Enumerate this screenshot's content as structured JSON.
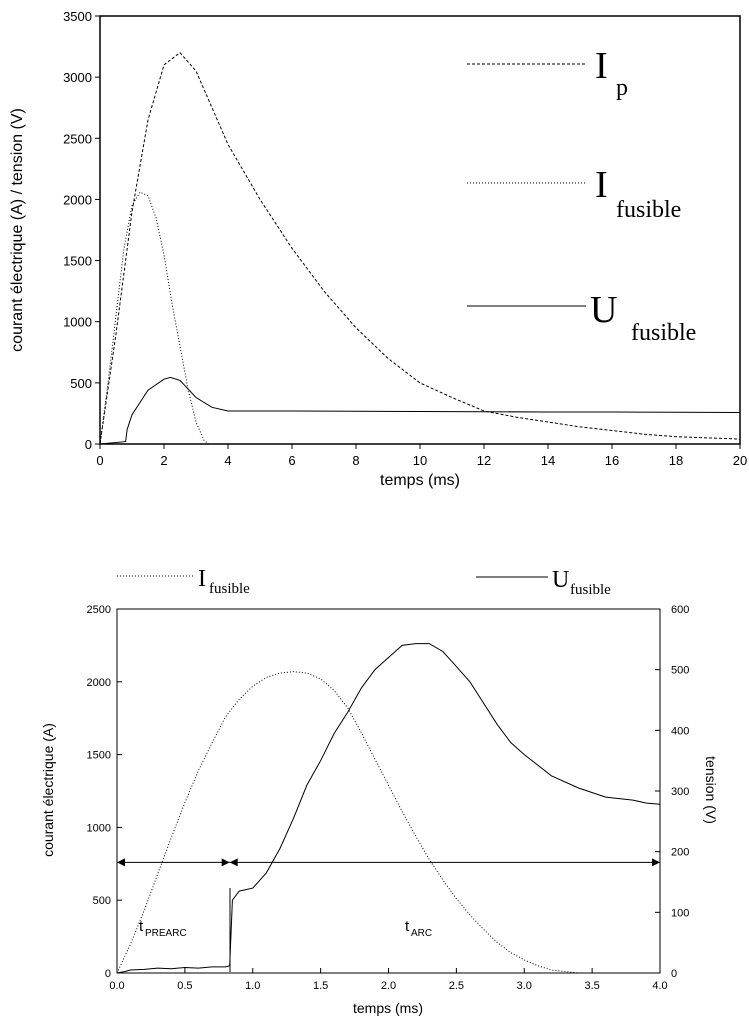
{
  "chart_data": [
    {
      "type": "line",
      "xlabel": "temps (ms)",
      "ylabel": "courant électrique (A) / tension (V)",
      "xlim": [
        0,
        20
      ],
      "ylim": [
        0,
        3500
      ],
      "xticks": [
        "0",
        "2",
        "4",
        "6",
        "8",
        "10",
        "12",
        "14",
        "16",
        "18",
        "20"
      ],
      "yticks": [
        "0",
        "500",
        "1000",
        "1500",
        "2000",
        "2500",
        "3000",
        "3500"
      ],
      "legend_position": "right",
      "series": [
        {
          "name": "I_p",
          "legend_main": "I",
          "legend_sub": "p",
          "style": "dashed",
          "x": [
            0,
            0.5,
            1.0,
            1.5,
            2.0,
            2.5,
            3.0,
            3.5,
            4.0,
            5.0,
            6.0,
            7.0,
            8.0,
            9.0,
            10.0,
            11.0,
            12.0,
            13.0,
            14.0,
            15.0,
            16.0,
            17.0,
            18.0,
            19.0,
            20.0
          ],
          "y": [
            0,
            900,
            1900,
            2650,
            3100,
            3200,
            3050,
            2750,
            2450,
            2000,
            1600,
            1250,
            950,
            700,
            500,
            380,
            270,
            220,
            180,
            140,
            110,
            80,
            60,
            50,
            40
          ]
        },
        {
          "name": "I_fusible",
          "legend_main": "I",
          "legend_sub": "fusible",
          "style": "dotted",
          "x": [
            0,
            0.25,
            0.5,
            0.75,
            1.0,
            1.25,
            1.5,
            1.75,
            2.0,
            2.25,
            2.5,
            2.75,
            3.0,
            3.25,
            3.4
          ],
          "y": [
            0,
            500,
            1050,
            1600,
            1950,
            2060,
            2030,
            1850,
            1550,
            1150,
            800,
            450,
            180,
            30,
            0
          ]
        },
        {
          "name": "U_fusible",
          "legend_main": "U",
          "legend_sub": "fusible",
          "style": "solid",
          "x": [
            0,
            0.8,
            0.85,
            1.0,
            1.5,
            2.0,
            2.2,
            2.5,
            3.0,
            3.5,
            4.0,
            6.0,
            8.0,
            10.0,
            12.0,
            14.0,
            16.0,
            18.0,
            20.0
          ],
          "y": [
            0,
            20,
            120,
            240,
            440,
            530,
            545,
            520,
            380,
            300,
            270,
            270,
            268,
            266,
            264,
            262,
            262,
            260,
            258
          ]
        }
      ]
    },
    {
      "type": "line",
      "xlabel": "temps (ms)",
      "ylabel": "courant électrique (A)",
      "y2label": "tension (V)",
      "xlim": [
        0,
        4
      ],
      "ylim": [
        0,
        2500
      ],
      "y2lim": [
        0,
        600
      ],
      "xticks": [
        "0.0",
        "0.5",
        "1.0",
        "1.5",
        "2.0",
        "2.5",
        "3.0",
        "3.5",
        "4.0"
      ],
      "yticks": [
        "0",
        "500",
        "1000",
        "1500",
        "2000",
        "2500"
      ],
      "y2ticks": [
        "0",
        "100",
        "200",
        "300",
        "400",
        "500",
        "600"
      ],
      "legend_position": "top",
      "series": [
        {
          "name": "I_fusible",
          "legend_main": "I",
          "legend_sub": "fusible",
          "style": "dotted",
          "axis": "left",
          "x": [
            0,
            0.1,
            0.2,
            0.3,
            0.4,
            0.5,
            0.6,
            0.7,
            0.8,
            0.9,
            1.0,
            1.1,
            1.2,
            1.3,
            1.4,
            1.5,
            1.6,
            1.7,
            1.8,
            1.9,
            2.0,
            2.1,
            2.2,
            2.3,
            2.4,
            2.5,
            2.6,
            2.7,
            2.8,
            2.9,
            3.0,
            3.1,
            3.2,
            3.3,
            3.4,
            3.5
          ],
          "y": [
            0,
            200,
            430,
            680,
            930,
            1170,
            1390,
            1580,
            1760,
            1880,
            1970,
            2030,
            2060,
            2070,
            2060,
            2020,
            1940,
            1820,
            1650,
            1470,
            1290,
            1110,
            940,
            780,
            640,
            510,
            400,
            300,
            210,
            140,
            90,
            50,
            20,
            10,
            0,
            0
          ]
        },
        {
          "name": "U_fusible",
          "legend_main": "U",
          "legend_sub": "fusible",
          "style": "solid",
          "axis": "right",
          "x": [
            0,
            0.05,
            0.1,
            0.2,
            0.3,
            0.4,
            0.5,
            0.6,
            0.7,
            0.8,
            0.83,
            0.85,
            0.9,
            1.0,
            1.1,
            1.2,
            1.3,
            1.4,
            1.5,
            1.6,
            1.7,
            1.8,
            1.9,
            2.0,
            2.1,
            2.2,
            2.3,
            2.4,
            2.5,
            2.6,
            2.7,
            2.8,
            2.9,
            3.0,
            3.2,
            3.4,
            3.6,
            3.8,
            3.9,
            4.0
          ],
          "y": [
            0,
            2,
            5,
            6,
            8,
            7,
            9,
            8,
            10,
            10,
            12,
            120,
            135,
            140,
            165,
            205,
            255,
            310,
            350,
            395,
            430,
            470,
            500,
            520,
            540,
            543,
            543,
            530,
            505,
            480,
            445,
            410,
            380,
            360,
            325,
            305,
            290,
            285,
            280,
            278
          ]
        }
      ],
      "annotations": [
        {
          "main": "t",
          "sub": "PREARC",
          "x_start": 0.0,
          "x_end": 0.83,
          "y": 760
        },
        {
          "main": "t",
          "sub": "ARC",
          "x_start": 0.83,
          "x_end": 4.0,
          "y": 760
        }
      ]
    }
  ]
}
